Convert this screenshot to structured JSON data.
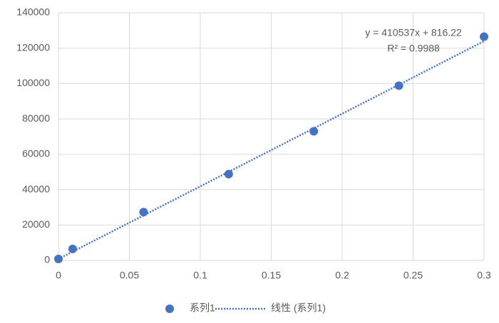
{
  "chart_data": {
    "type": "scatter",
    "x": [
      0,
      0.01,
      0.06,
      0.12,
      0.18,
      0.24,
      0.3
    ],
    "series": [
      {
        "name": "系列1",
        "color": "#4472c4",
        "values": [
          800,
          6500,
          27300,
          48800,
          73000,
          98800,
          126500
        ]
      }
    ],
    "trendline": {
      "name": "线性 (系列1)",
      "slope": 410537,
      "intercept": 816.22,
      "equation": "y = 410537x + 816.22",
      "r2": 0.9988,
      "r2_label": "R² = 0.9988",
      "color": "#4472c4"
    },
    "xlim": [
      0,
      0.3
    ],
    "xticks": [
      0,
      0.05,
      0.1,
      0.15,
      0.2,
      0.25,
      0.3
    ],
    "ylim": [
      0,
      140000
    ],
    "yticks": [
      0,
      20000,
      40000,
      60000,
      80000,
      100000,
      120000,
      140000
    ],
    "grid": true,
    "legend": "bottom"
  }
}
